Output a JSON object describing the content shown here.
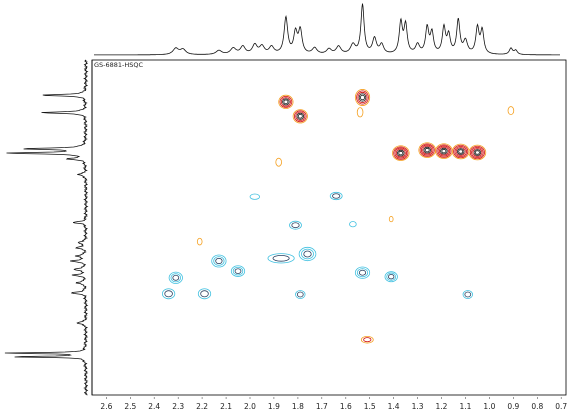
{
  "chart_data": {
    "type": "scatter",
    "title": "GS-6881-HSQC",
    "xlabel": "",
    "ylabel": "",
    "x_axis": {
      "reversed": true,
      "lim": [
        2.66,
        0.68
      ],
      "ticks": [
        2.6,
        2.5,
        2.4,
        2.3,
        2.2,
        2.1,
        2.0,
        1.9,
        1.8,
        1.7,
        1.6,
        1.5,
        1.4,
        1.3,
        1.2,
        1.1,
        1.0,
        0.9,
        0.8,
        0.7
      ],
      "tick_labels": [
        "2.6",
        "2.5",
        "2.4",
        "2.3",
        "2.2",
        "2.1",
        "2.0",
        "1.9",
        "1.8",
        "1.7",
        "1.6",
        "1.5",
        "1.4",
        "1.3",
        "1.2",
        "1.1",
        "1.0",
        "0.9",
        "0.8",
        "0.7"
      ]
    },
    "y_axis": {
      "lim": [
        0,
        100
      ],
      "ticks": [],
      "tick_labels": []
    },
    "grid": false,
    "legend": "none",
    "colors": {
      "positive_core": "#1a1a1a",
      "positive_mid": "#d01010",
      "positive_outer": "#f5a020",
      "negative_core": "#2a4060",
      "negative_outer": "#40c0e0",
      "trace": "#111111",
      "frame": "#000000"
    },
    "series": [
      {
        "name": "",
        "phase": "positive",
        "color": "#d01010",
        "points": [
          {
            "x": 1.85,
            "y": 12.5,
            "w": 0.03,
            "h": 2.0,
            "levels": 5
          },
          {
            "x": 1.79,
            "y": 16.8,
            "w": 0.03,
            "h": 2.0,
            "levels": 5
          },
          {
            "x": 1.53,
            "y": 11.2,
            "w": 0.03,
            "h": 2.4,
            "levels": 5
          },
          {
            "x": 1.37,
            "y": 27.8,
            "w": 0.035,
            "h": 2.2,
            "levels": 6
          },
          {
            "x": 1.26,
            "y": 26.9,
            "w": 0.035,
            "h": 2.2,
            "levels": 6
          },
          {
            "x": 1.19,
            "y": 27.2,
            "w": 0.035,
            "h": 2.2,
            "levels": 6
          },
          {
            "x": 1.12,
            "y": 27.3,
            "w": 0.035,
            "h": 2.2,
            "levels": 6
          },
          {
            "x": 1.05,
            "y": 27.6,
            "w": 0.035,
            "h": 2.2,
            "levels": 6
          },
          {
            "x": 1.51,
            "y": 83.5,
            "w": 0.025,
            "h": 1.0,
            "levels": 2
          },
          {
            "x": 1.54,
            "y": 15.6,
            "w": 0.012,
            "h": 1.4,
            "levels": 1
          },
          {
            "x": 0.91,
            "y": 15.1,
            "w": 0.012,
            "h": 1.2,
            "levels": 1
          },
          {
            "x": 1.88,
            "y": 30.5,
            "w": 0.012,
            "h": 1.2,
            "levels": 1
          },
          {
            "x": 2.21,
            "y": 54.2,
            "w": 0.01,
            "h": 1.0,
            "levels": 1
          },
          {
            "x": 1.41,
            "y": 47.5,
            "w": 0.008,
            "h": 0.8,
            "levels": 1
          }
        ]
      },
      {
        "name": "",
        "phase": "negative",
        "color": "#40c0e0",
        "points": [
          {
            "x": 1.98,
            "y": 40.8,
            "w": 0.02,
            "h": 0.8,
            "levels": 1
          },
          {
            "x": 1.64,
            "y": 40.6,
            "w": 0.025,
            "h": 1.1,
            "levels": 2
          },
          {
            "x": 1.81,
            "y": 49.3,
            "w": 0.025,
            "h": 1.2,
            "levels": 2
          },
          {
            "x": 1.57,
            "y": 49.0,
            "w": 0.014,
            "h": 0.8,
            "levels": 1
          },
          {
            "x": 1.87,
            "y": 59.2,
            "w": 0.055,
            "h": 1.4,
            "levels": 2
          },
          {
            "x": 1.76,
            "y": 57.9,
            "w": 0.035,
            "h": 2.0,
            "levels": 3
          },
          {
            "x": 2.13,
            "y": 60.0,
            "w": 0.03,
            "h": 1.8,
            "levels": 3
          },
          {
            "x": 2.05,
            "y": 63.0,
            "w": 0.028,
            "h": 1.6,
            "levels": 3
          },
          {
            "x": 2.31,
            "y": 65.0,
            "w": 0.028,
            "h": 1.7,
            "levels": 3
          },
          {
            "x": 1.53,
            "y": 63.5,
            "w": 0.03,
            "h": 1.7,
            "levels": 3
          },
          {
            "x": 1.41,
            "y": 64.7,
            "w": 0.026,
            "h": 1.5,
            "levels": 3
          },
          {
            "x": 2.34,
            "y": 69.8,
            "w": 0.026,
            "h": 1.5,
            "levels": 2
          },
          {
            "x": 2.19,
            "y": 69.8,
            "w": 0.026,
            "h": 1.5,
            "levels": 2
          },
          {
            "x": 1.79,
            "y": 70.0,
            "w": 0.02,
            "h": 1.2,
            "levels": 2
          },
          {
            "x": 1.09,
            "y": 70.0,
            "w": 0.02,
            "h": 1.2,
            "levels": 2
          }
        ]
      }
    ],
    "projection_top": {
      "peaks": [
        {
          "x": 2.31,
          "h": 0.12,
          "w": 0.014
        },
        {
          "x": 2.28,
          "h": 0.1,
          "w": 0.014
        },
        {
          "x": 2.13,
          "h": 0.08,
          "w": 0.014
        },
        {
          "x": 2.07,
          "h": 0.12,
          "w": 0.014
        },
        {
          "x": 2.03,
          "h": 0.15,
          "w": 0.012
        },
        {
          "x": 1.98,
          "h": 0.18,
          "w": 0.012
        },
        {
          "x": 1.95,
          "h": 0.15,
          "w": 0.012
        },
        {
          "x": 1.91,
          "h": 0.14,
          "w": 0.012
        },
        {
          "x": 1.85,
          "h": 0.7,
          "w": 0.009
        },
        {
          "x": 1.81,
          "h": 0.4,
          "w": 0.009
        },
        {
          "x": 1.79,
          "h": 0.45,
          "w": 0.009
        },
        {
          "x": 1.73,
          "h": 0.12,
          "w": 0.012
        },
        {
          "x": 1.67,
          "h": 0.1,
          "w": 0.012
        },
        {
          "x": 1.63,
          "h": 0.15,
          "w": 0.012
        },
        {
          "x": 1.57,
          "h": 0.18,
          "w": 0.012
        },
        {
          "x": 1.53,
          "h": 0.95,
          "w": 0.008
        },
        {
          "x": 1.48,
          "h": 0.3,
          "w": 0.01
        },
        {
          "x": 1.45,
          "h": 0.18,
          "w": 0.01
        },
        {
          "x": 1.37,
          "h": 0.6,
          "w": 0.008
        },
        {
          "x": 1.35,
          "h": 0.55,
          "w": 0.008
        },
        {
          "x": 1.3,
          "h": 0.18,
          "w": 0.01
        },
        {
          "x": 1.26,
          "h": 0.5,
          "w": 0.008
        },
        {
          "x": 1.24,
          "h": 0.4,
          "w": 0.008
        },
        {
          "x": 1.19,
          "h": 0.5,
          "w": 0.008
        },
        {
          "x": 1.17,
          "h": 0.35,
          "w": 0.008
        },
        {
          "x": 1.13,
          "h": 0.65,
          "w": 0.008
        },
        {
          "x": 1.1,
          "h": 0.25,
          "w": 0.01
        },
        {
          "x": 1.05,
          "h": 0.5,
          "w": 0.008
        },
        {
          "x": 1.03,
          "h": 0.45,
          "w": 0.008
        },
        {
          "x": 0.91,
          "h": 0.12,
          "w": 0.008
        },
        {
          "x": 0.89,
          "h": 0.08,
          "w": 0.008
        }
      ]
    },
    "projection_left": {
      "peaks": [
        {
          "y": 10.5,
          "h": 0.55,
          "w": 0.25
        },
        {
          "y": 15.7,
          "h": 0.55,
          "w": 0.25
        },
        {
          "y": 26.5,
          "h": 0.75,
          "w": 0.25
        },
        {
          "y": 27.8,
          "h": 0.95,
          "w": 0.25
        },
        {
          "y": 29.5,
          "h": 0.2,
          "w": 0.3
        },
        {
          "y": 34.2,
          "h": 0.1,
          "w": 0.3
        },
        {
          "y": 48.5,
          "h": 0.15,
          "w": 0.3
        },
        {
          "y": 54.5,
          "h": 0.1,
          "w": 0.3
        },
        {
          "y": 56.0,
          "h": 0.12,
          "w": 0.3
        },
        {
          "y": 58.5,
          "h": 0.12,
          "w": 0.3
        },
        {
          "y": 60.0,
          "h": 0.18,
          "w": 0.3
        },
        {
          "y": 62.5,
          "h": 0.15,
          "w": 0.3
        },
        {
          "y": 64.2,
          "h": 0.15,
          "w": 0.3
        },
        {
          "y": 66.5,
          "h": 0.12,
          "w": 0.3
        },
        {
          "y": 69.5,
          "h": 0.18,
          "w": 0.3
        },
        {
          "y": 78.5,
          "h": 0.12,
          "w": 0.3
        },
        {
          "y": 87.5,
          "h": 0.98,
          "w": 0.18
        },
        {
          "y": 88.6,
          "h": 0.9,
          "w": 0.18
        }
      ]
    }
  }
}
